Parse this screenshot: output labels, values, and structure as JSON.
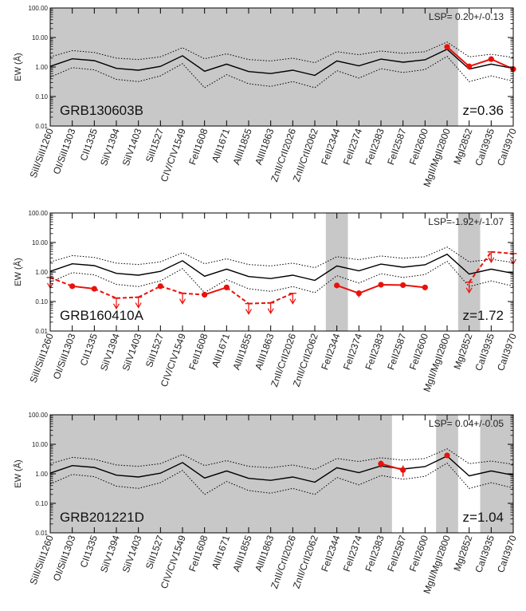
{
  "chart_data": {
    "type": "line",
    "ylabel": "EW (Å)",
    "yscale": "log",
    "ylim": [
      0.01,
      100
    ],
    "yticks": [
      "0.01",
      "0.10",
      "1.00",
      "10.00",
      "100.00"
    ],
    "lines": [
      "SiII/SiII1260",
      "OI/SiII1303",
      "CII1335",
      "SiIV1394",
      "SiIV1403",
      "SiII1527",
      "CIV/CIV1549",
      "FeII1608",
      "AlII1671",
      "AlIII1855",
      "AlIII1863",
      "ZnII/CrII2026",
      "ZnII/CrII2062",
      "FeII2344",
      "FeII2374",
      "FeII2383",
      "FeII2587",
      "FeII2600",
      "MgII/MgII2800",
      "MgI2852",
      "CaII3935",
      "CaII3970"
    ],
    "template": {
      "median": [
        1.05,
        1.9,
        1.65,
        0.9,
        0.78,
        1.05,
        2.4,
        0.72,
        1.25,
        0.7,
        0.6,
        0.78,
        0.52,
        1.6,
        1.1,
        1.85,
        1.45,
        1.75,
        4.0,
        0.85,
        1.25,
        0.9
      ],
      "upper": [
        2.2,
        3.6,
        3.1,
        2.0,
        1.8,
        2.2,
        4.5,
        1.9,
        2.8,
        1.8,
        1.6,
        2.0,
        1.4,
        3.3,
        2.6,
        3.5,
        2.9,
        3.3,
        7.0,
        2.2,
        2.7,
        2.1
      ],
      "lower": [
        0.45,
        0.95,
        0.8,
        0.38,
        0.32,
        0.5,
        1.3,
        0.2,
        0.55,
        0.27,
        0.22,
        0.32,
        0.2,
        0.75,
        0.42,
        0.88,
        0.65,
        0.82,
        2.3,
        0.32,
        0.5,
        0.33
      ]
    },
    "panels": [
      {
        "name": "GRB130603B",
        "z": "z=0.36",
        "lsp": "LSP= 0.20+/-0.13",
        "labels": [
          "SiII/SiII1260",
          "OI/SiII1303",
          "CII1335",
          "SiIV1394",
          "SiIV1403",
          "SiII1527",
          "CIV/CIV1549",
          "FeII1608",
          "AlII1671",
          "AlIII1855",
          "AlIII1863",
          "ZnII/CrII2026",
          "ZnII/CrII2062",
          "FeII2344",
          "FeII2374",
          "FeII2383",
          "FeII2587",
          "FeII2600",
          "MgII/MgII2800",
          "MgI2852",
          "CaII3935",
          "CaII3970"
        ],
        "shaded": [
          [
            0,
            18.5
          ]
        ],
        "detections": [
          {
            "line": "MgII/MgII2800",
            "ew": 4.8,
            "err": 0.5
          },
          {
            "line": "MgI2852",
            "ew": 1.05,
            "err": 0.1
          },
          {
            "line": "CaII3935",
            "ew": 1.85,
            "err": 0.25
          },
          {
            "line": "CaII3970",
            "ew": 0.85,
            "err": 0.1
          }
        ],
        "upper_limits": []
      },
      {
        "name": "GRB160410A",
        "z": "z=1.72",
        "lsp": "LSP=-1.92+/-1.07",
        "labels": [
          "SiII/SiII1260",
          "OI/SiII1303",
          "CII1335",
          "SiIV1394",
          "SiIV1403",
          "SiII1527",
          "CIV/CIV1549",
          "FeII1608",
          "AlII1671",
          "AlIII1855",
          "AlIII1863",
          "ZnII/CrII2026",
          "ZnII/CrII2062",
          "FeII2344",
          "FeII2374",
          "FeII2383",
          "FeII2587",
          "FeII2600",
          "MgII/MgII2800",
          "MgI2852",
          "CaII3935",
          "CaII3970"
        ],
        "shaded": [
          [
            12.5,
            13.5
          ],
          [
            18.5,
            19.5
          ]
        ],
        "detections": [
          {
            "line": "OI/SiII1303",
            "ew": 0.33,
            "err": 0.04
          },
          {
            "line": "CII1335",
            "ew": 0.27,
            "err": 0.05
          },
          {
            "line": "SiII1527",
            "ew": 0.33,
            "err": 0.03
          },
          {
            "line": "FeII1608",
            "ew": 0.17,
            "err": 0.03
          },
          {
            "line": "AlII1671",
            "ew": 0.3,
            "err": 0.05
          },
          {
            "line": "FeII2344",
            "ew": 0.35,
            "err": 0.04
          },
          {
            "line": "FeII2374",
            "ew": 0.19,
            "err": 0.05
          },
          {
            "line": "FeII2383",
            "ew": 0.37,
            "err": 0.04
          },
          {
            "line": "FeII2587",
            "ew": 0.36,
            "err": 0.03
          },
          {
            "line": "FeII2600",
            "ew": 0.3,
            "err": 0.02
          }
        ],
        "upper_limits": [
          {
            "line": "SiII/SiII1260",
            "ew": 0.65
          },
          {
            "line": "SiIV1394",
            "ew": 0.13
          },
          {
            "line": "SiIV1403",
            "ew": 0.14
          },
          {
            "line": "CIV/CIV1549",
            "ew": 0.19
          },
          {
            "line": "AlIII1855",
            "ew": 0.085
          },
          {
            "line": "AlIII1863",
            "ew": 0.09
          },
          {
            "line": "ZnII/CrII2026",
            "ew": 0.19
          },
          {
            "line": "MgI2852",
            "ew": 0.45
          },
          {
            "line": "CaII3935",
            "ew": 4.8
          },
          {
            "line": "CaII3970",
            "ew": 4.2
          }
        ]
      },
      {
        "name": "GRB201221D",
        "z": "z=1.04",
        "lsp": "LSP= 0.04+/-0.05",
        "labels": [
          "SiII/SiII1260",
          "OI/SiII1303",
          "CII1335",
          "SiIV1394",
          "SiIV1403",
          "SiII1527",
          "CIV/CIV1549",
          "FeII1608",
          "AlII1671",
          "AlIII1855",
          "AlIII1863",
          "ZnII/CrII2026",
          "ZnII/CrII2062",
          "FeII2344",
          "FeII2374",
          "FeII2383",
          "FeII2587",
          "FeII2600",
          "MgII/MgII2800",
          "MgI2852",
          "CaII3935",
          "CaII3970"
        ],
        "shaded": [
          [
            0,
            15.5
          ],
          [
            17.5,
            18.5
          ],
          [
            19.5,
            21
          ]
        ],
        "detections": [
          {
            "line": "FeII2383",
            "ew": 2.2,
            "err": 0.6
          },
          {
            "line": "FeII2587",
            "ew": 1.35,
            "err": 0.55
          },
          {
            "line": "MgII/MgII2800",
            "ew": 4.2,
            "err": 0.8
          }
        ],
        "upper_limits": []
      }
    ]
  }
}
